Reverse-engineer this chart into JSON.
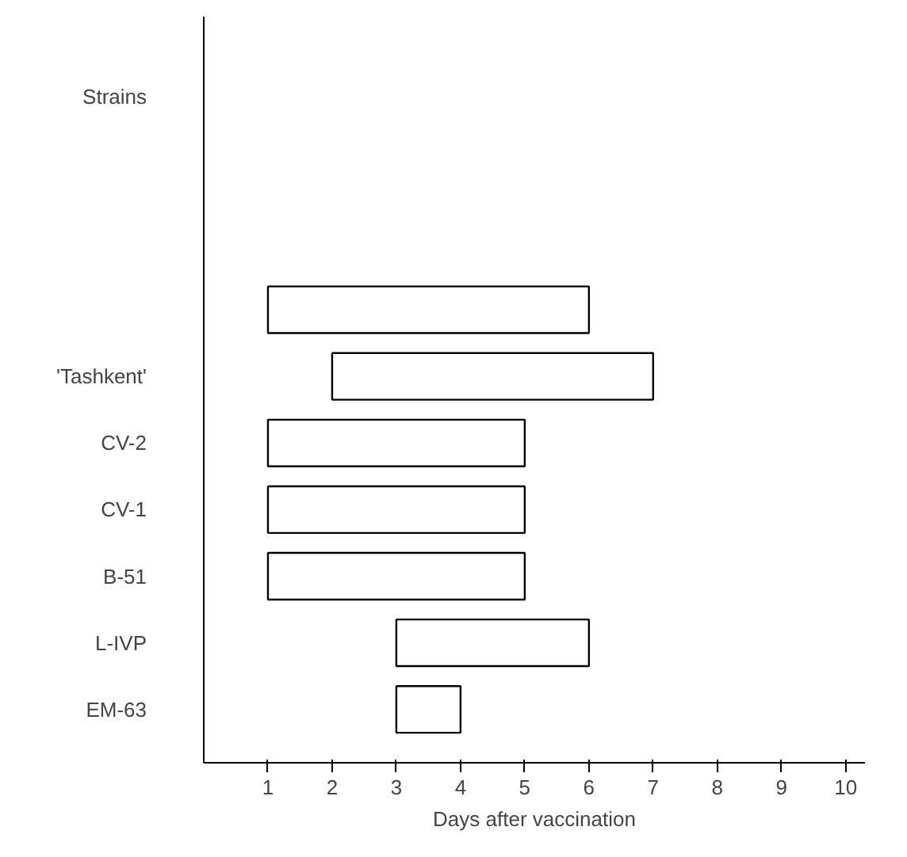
{
  "chart_data": {
    "type": "bar",
    "orientation": "horizontal",
    "annotations": [
      "Strains"
    ],
    "xlabel": "Days after vaccination",
    "categories": [
      null,
      "'Tashkent'",
      "CV-2",
      "CV-1",
      "B-51",
      "L-IVP",
      "EM-63"
    ],
    "base": [
      1,
      2,
      1,
      1,
      1,
      3,
      3
    ],
    "values": [
      5,
      5,
      4,
      4,
      4,
      3,
      1
    ],
    "color": "#ffffff",
    "xlim": [
      0,
      10.3
    ],
    "xticks": [
      1,
      2,
      3,
      4,
      5,
      6,
      7,
      8,
      9,
      10
    ],
    "grid": false
  }
}
